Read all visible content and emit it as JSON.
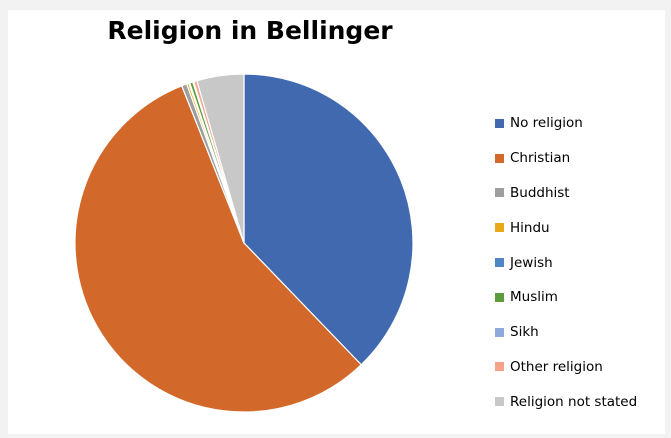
{
  "chart_data": {
    "type": "pie",
    "title": "Religion in Bellinger",
    "legend_position": "right",
    "start_angle_deg": 0,
    "direction": "clockwise",
    "slices": [
      {
        "label": "No religion",
        "value": 37.8,
        "color": "#4169b0"
      },
      {
        "label": "Christian",
        "value": 56.2,
        "color": "#d2692a"
      },
      {
        "label": "Buddhist",
        "value": 0.5,
        "color": "#9e9e9e"
      },
      {
        "label": "Hindu",
        "value": 0.2,
        "color": "#e8a817"
      },
      {
        "label": "Jewish",
        "value": 0.1,
        "color": "#4f86c6"
      },
      {
        "label": "Muslim",
        "value": 0.3,
        "color": "#5c9e3d"
      },
      {
        "label": "Sikh",
        "value": 0.1,
        "color": "#8ea9db"
      },
      {
        "label": "Other religion",
        "value": 0.3,
        "color": "#f4a28a"
      },
      {
        "label": "Religion not stated",
        "value": 4.5,
        "color": "#c8c8c8"
      }
    ]
  }
}
